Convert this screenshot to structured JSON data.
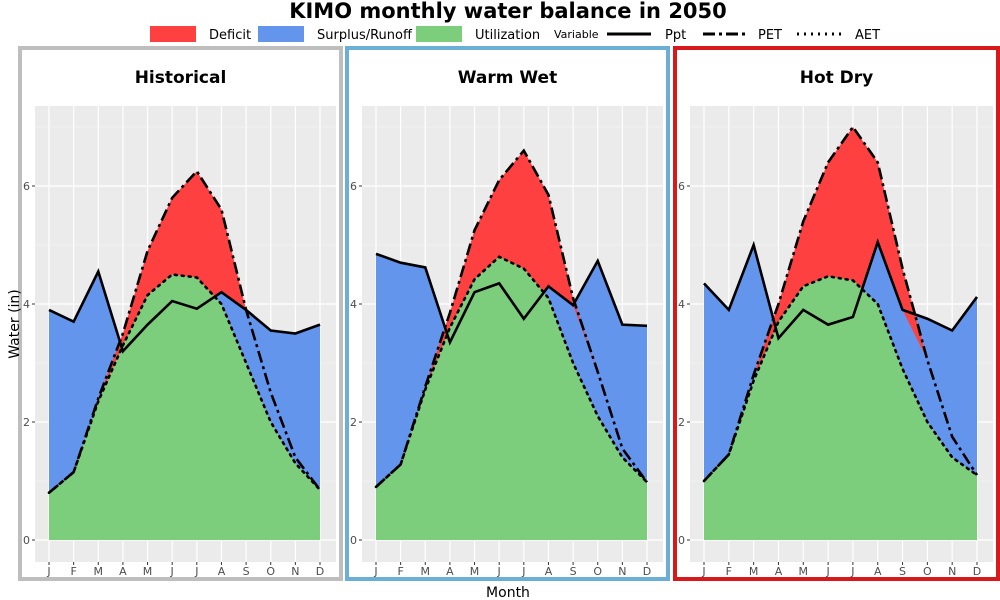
{
  "title": "KIMO monthly water balance in 2050",
  "legend": {
    "fill_items": [
      {
        "label": "Deficit",
        "color": "#ff4040"
      },
      {
        "label": "Surplus/Runoff",
        "color": "#6495ed"
      },
      {
        "label": "Utilization",
        "color": "#7ccd7c"
      }
    ],
    "variable_title": "Variable",
    "line_items": [
      {
        "label": "Ppt",
        "style": "solid"
      },
      {
        "label": "PET",
        "style": "dashdot"
      },
      {
        "label": "AET",
        "style": "dotted"
      }
    ]
  },
  "colors": {
    "deficit": "#ff4040",
    "surplus": "#6495ed",
    "utilization": "#7ccd7c",
    "panel_bg": "#ebebeb",
    "grid": "#ffffff"
  },
  "chart_data": {
    "type": "area",
    "title": "KIMO monthly water balance in 2050",
    "xlabel": "Month",
    "ylabel": "Water (in)",
    "ylim": [
      0,
      7.2
    ],
    "yticks": [
      0,
      2,
      4,
      6
    ],
    "categories": [
      "J",
      "F",
      "M",
      "A",
      "M",
      "J",
      "J",
      "A",
      "S",
      "O",
      "N",
      "D"
    ],
    "panels": [
      {
        "name": "Historical",
        "border_color": "#bebebe",
        "series": [
          {
            "name": "Ppt",
            "values": [
              3.9,
              3.7,
              4.55,
              3.2,
              3.65,
              4.05,
              3.92,
              4.2,
              3.9,
              3.55,
              3.5,
              3.65
            ]
          },
          {
            "name": "PET",
            "values": [
              0.8,
              1.15,
              2.4,
              3.5,
              4.9,
              5.8,
              6.25,
              5.6,
              3.9,
              2.5,
              1.4,
              0.85
            ]
          },
          {
            "name": "AET",
            "values": [
              0.8,
              1.15,
              2.35,
              3.3,
              4.15,
              4.5,
              4.45,
              4.0,
              3.0,
              2.0,
              1.3,
              0.85
            ]
          }
        ]
      },
      {
        "name": "Warm Wet",
        "border_color": "#6baed6",
        "series": [
          {
            "name": "Ppt",
            "values": [
              4.85,
              4.7,
              4.62,
              3.35,
              4.2,
              4.35,
              3.75,
              4.3,
              3.98,
              4.73,
              3.65,
              3.63
            ]
          },
          {
            "name": "PET",
            "values": [
              0.9,
              1.28,
              2.6,
              3.85,
              5.25,
              6.1,
              6.6,
              5.85,
              4.1,
              2.85,
              1.55,
              0.98
            ]
          },
          {
            "name": "AET",
            "values": [
              0.9,
              1.28,
              2.55,
              3.6,
              4.42,
              4.8,
              4.6,
              4.1,
              3.0,
              2.1,
              1.4,
              0.98
            ]
          }
        ]
      },
      {
        "name": "Hot Dry",
        "border_color": "#d7191c",
        "series": [
          {
            "name": "Ppt",
            "values": [
              4.35,
              3.9,
              5.0,
              3.42,
              3.9,
              3.65,
              3.78,
              5.05,
              3.9,
              3.75,
              3.55,
              4.12
            ]
          },
          {
            "name": "PET",
            "values": [
              1.0,
              1.45,
              2.8,
              4.0,
              5.4,
              6.4,
              7.0,
              6.4,
              4.6,
              3.05,
              1.75,
              1.1
            ]
          },
          {
            "name": "AET",
            "values": [
              1.0,
              1.45,
              2.7,
              3.7,
              4.3,
              4.47,
              4.4,
              4.0,
              2.9,
              2.0,
              1.4,
              1.1
            ]
          }
        ]
      }
    ]
  }
}
